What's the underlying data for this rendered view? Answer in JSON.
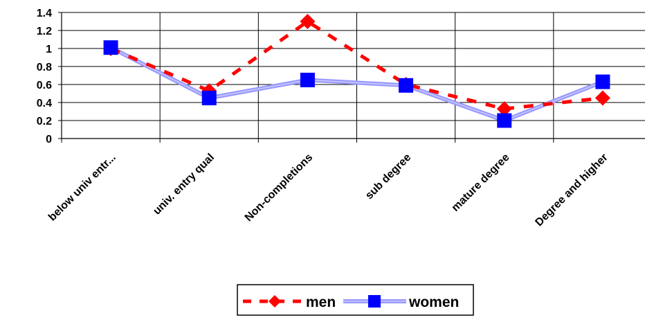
{
  "chart_data": {
    "type": "line",
    "categories": [
      "below univ entr...",
      "univ. entry qual",
      "Non-completions",
      "sub degree",
      "mature degree",
      "Degree and higher"
    ],
    "ylim": [
      0,
      1.4
    ],
    "yticks": [
      "0",
      "0.2",
      "0.4",
      "0.6",
      "0.8",
      "1",
      "1.2",
      "1.4"
    ],
    "grid": true,
    "legend_position": "bottom",
    "series": [
      {
        "name": "men",
        "values": [
          1.0,
          0.53,
          1.3,
          0.6,
          0.33,
          0.45
        ],
        "color": "#ff0000",
        "marker": "diamond",
        "line": "dashed"
      },
      {
        "name": "women",
        "values": [
          1.01,
          0.45,
          0.65,
          0.59,
          0.2,
          0.63
        ],
        "color": "#0000ff",
        "line_color": "#9999ff",
        "marker": "square",
        "line": "solid"
      }
    ]
  }
}
